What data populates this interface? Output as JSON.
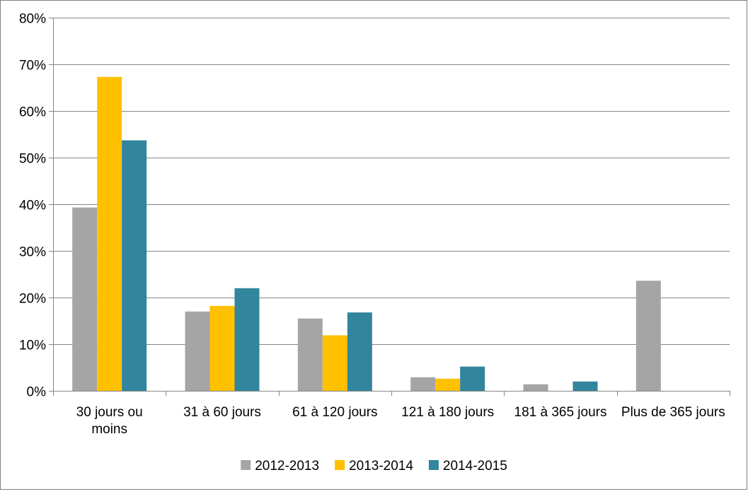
{
  "chart_data": {
    "type": "bar",
    "title": "",
    "xlabel": "",
    "ylabel": "",
    "categories": [
      "30 jours ou moins",
      "31 à 60 jours",
      "61 à 120 jours",
      "121 à 180 jours",
      "181 à 365 jours",
      "Plus de 365 jours"
    ],
    "category_lines": [
      [
        "30 jours ou",
        "moins"
      ],
      [
        "31 à 60 jours"
      ],
      [
        "61 à 120 jours"
      ],
      [
        "121 à 180 jours"
      ],
      [
        "181 à 365 jours"
      ],
      [
        "Plus de 365 jours"
      ]
    ],
    "ylim": [
      0,
      80
    ],
    "yticks": [
      0,
      10,
      20,
      30,
      40,
      50,
      60,
      70,
      80
    ],
    "ytick_labels": [
      "0%",
      "10%",
      "20%",
      "30%",
      "40%",
      "50%",
      "60%",
      "70%",
      "80%"
    ],
    "grid": true,
    "legend_position": "bottom",
    "series": [
      {
        "name": "2012-2013",
        "color": "#a5a5a5",
        "values": [
          39.3,
          17.0,
          15.5,
          2.9,
          1.4,
          23.6
        ]
      },
      {
        "name": "2013-2014",
        "color": "#ffc000",
        "values": [
          67.3,
          18.2,
          11.9,
          2.6,
          0,
          0
        ]
      },
      {
        "name": "2014-2015",
        "color": "#31859c",
        "values": [
          53.7,
          22.0,
          16.8,
          5.2,
          2.0,
          0
        ]
      }
    ]
  }
}
